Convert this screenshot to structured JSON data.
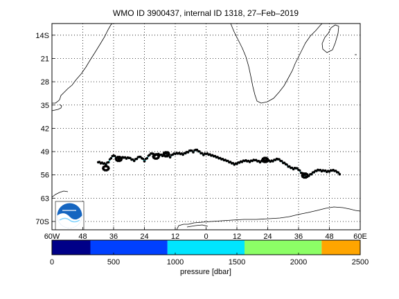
{
  "title": "WMO ID 3900437, internal ID 1318, 27–Feb–2019",
  "map": {
    "lon_range": [
      -60,
      60
    ],
    "lat_range": [
      -72.5,
      -10.5
    ],
    "lat_ticks": [
      {
        "value": -14,
        "label": "14S"
      },
      {
        "value": -21,
        "label": "21"
      },
      {
        "value": -28,
        "label": "28"
      },
      {
        "value": -35,
        "label": "35"
      },
      {
        "value": -42,
        "label": "42"
      },
      {
        "value": -49,
        "label": "49"
      },
      {
        "value": -56,
        "label": "56"
      },
      {
        "value": -63,
        "label": "63"
      },
      {
        "value": -70,
        "label": "70S"
      }
    ],
    "lon_ticks": [
      {
        "value": -60,
        "label": "60W"
      },
      {
        "value": -48,
        "label": "48"
      },
      {
        "value": -36,
        "label": "36"
      },
      {
        "value": -24,
        "label": "24"
      },
      {
        "value": -12,
        "label": "12"
      },
      {
        "value": 0,
        "label": "0"
      },
      {
        "value": 12,
        "label": "12"
      },
      {
        "value": 24,
        "label": "24"
      },
      {
        "value": 36,
        "label": "36"
      },
      {
        "value": 48,
        "label": "48"
      },
      {
        "value": 60,
        "label": "60E"
      }
    ],
    "grid": true,
    "logo": "noaa-logo"
  },
  "track": {
    "line_color": "#00e5ee",
    "marker_color": "#000000",
    "points": [
      [
        -42,
        -52.2
      ],
      [
        -41,
        -52.5
      ],
      [
        -40,
        -52.6
      ],
      [
        -39,
        -52.9
      ],
      [
        -38,
        -52.2
      ],
      [
        -37,
        -51.0
      ],
      [
        -36,
        -50.2
      ],
      [
        -35,
        -50.9
      ],
      [
        -34,
        -51.2
      ],
      [
        -33,
        -51.0
      ],
      [
        -32,
        -50.8
      ],
      [
        -31,
        -51.1
      ],
      [
        -30,
        -50.9
      ],
      [
        -29,
        -51.4
      ],
      [
        -28,
        -51.8
      ],
      [
        -27,
        -51.2
      ],
      [
        -26,
        -50.6
      ],
      [
        -25,
        -51.0
      ],
      [
        -24,
        -51.9
      ],
      [
        -23,
        -51.0
      ],
      [
        -22,
        -50.0
      ],
      [
        -21,
        -49.6
      ],
      [
        -20,
        -50.2
      ],
      [
        -19,
        -49.8
      ],
      [
        -18,
        -50.0
      ],
      [
        -17,
        -50.3
      ],
      [
        -16,
        -49.6
      ],
      [
        -15,
        -50.1
      ],
      [
        -14,
        -50.7
      ],
      [
        -13,
        -49.9
      ],
      [
        -12,
        -49.7
      ],
      [
        -11,
        -49.6
      ],
      [
        -10,
        -49.7
      ],
      [
        -9,
        -49.9
      ],
      [
        -8,
        -49.5
      ],
      [
        -7,
        -49.2
      ],
      [
        -6,
        -48.7
      ],
      [
        -5,
        -49.2
      ],
      [
        -4,
        -48.5
      ],
      [
        -3,
        -48.9
      ],
      [
        -2,
        -49.5
      ],
      [
        -1,
        -50.0
      ],
      [
        0,
        -49.7
      ],
      [
        1,
        -49.9
      ],
      [
        2,
        -50.2
      ],
      [
        3,
        -50.4
      ],
      [
        4,
        -50.7
      ],
      [
        5,
        -51.0
      ],
      [
        6,
        -51.3
      ],
      [
        7,
        -51.6
      ],
      [
        8,
        -51.8
      ],
      [
        9,
        -52.2
      ],
      [
        10,
        -52.5
      ],
      [
        11,
        -52.9
      ],
      [
        12,
        -52.7
      ],
      [
        13,
        -52.3
      ],
      [
        14,
        -52.1
      ],
      [
        15,
        -51.8
      ],
      [
        16,
        -51.9
      ],
      [
        17,
        -52.1
      ],
      [
        18,
        -51.8
      ],
      [
        19,
        -51.6
      ],
      [
        20,
        -51.9
      ],
      [
        21,
        -52.2
      ],
      [
        22,
        -51.9
      ],
      [
        23,
        -51.7
      ],
      [
        24,
        -51.8
      ],
      [
        25,
        -52.0
      ],
      [
        26,
        -51.9
      ],
      [
        27,
        -51.5
      ],
      [
        28,
        -51.3
      ],
      [
        29,
        -51.8
      ],
      [
        30,
        -52.4
      ],
      [
        31,
        -52.8
      ],
      [
        32,
        -53.5
      ],
      [
        33,
        -53.9
      ],
      [
        34,
        -54.3
      ],
      [
        35,
        -54.0
      ],
      [
        36,
        -54.5
      ],
      [
        37,
        -55.4
      ],
      [
        38,
        -56.0
      ],
      [
        39,
        -56.6
      ],
      [
        40,
        -56.3
      ],
      [
        41,
        -55.8
      ],
      [
        42,
        -55.2
      ],
      [
        43,
        -54.8
      ],
      [
        44,
        -54.6
      ],
      [
        45,
        -54.9
      ],
      [
        46,
        -54.8
      ],
      [
        47,
        -55.1
      ],
      [
        48,
        -55.0
      ],
      [
        49,
        -54.7
      ],
      [
        50,
        -54.8
      ],
      [
        51,
        -55.2
      ],
      [
        52,
        -55.8
      ]
    ],
    "loops": [
      {
        "lon": -39.0,
        "lat": -54.0
      },
      {
        "lon": -34.0,
        "lat": -51.2
      },
      {
        "lon": -19.5,
        "lat": -50.5
      },
      {
        "lon": -15.5,
        "lat": -49.8
      },
      {
        "lon": 23.0,
        "lat": -51.5
      },
      {
        "lon": 38.5,
        "lat": -56.2
      }
    ]
  },
  "colorbar": {
    "label": "pressure [dbar]",
    "range": [
      0,
      2500
    ],
    "ticks": [
      {
        "value": 0,
        "label": "0"
      },
      {
        "value": 500,
        "label": "500"
      },
      {
        "value": 1000,
        "label": "1000"
      },
      {
        "value": 1500,
        "label": "1500"
      },
      {
        "value": 2000,
        "label": "2000"
      },
      {
        "value": 2500,
        "label": "2500"
      }
    ],
    "segments": [
      {
        "from": 0,
        "to": 312,
        "color": "#000088"
      },
      {
        "from": 312,
        "to": 937,
        "color": "#0040ff"
      },
      {
        "from": 937,
        "to": 1562,
        "color": "#00e5ff"
      },
      {
        "from": 1562,
        "to": 2187,
        "color": "#8cff66"
      },
      {
        "from": 2187,
        "to": 2500,
        "color": "#ffa500"
      }
    ]
  }
}
